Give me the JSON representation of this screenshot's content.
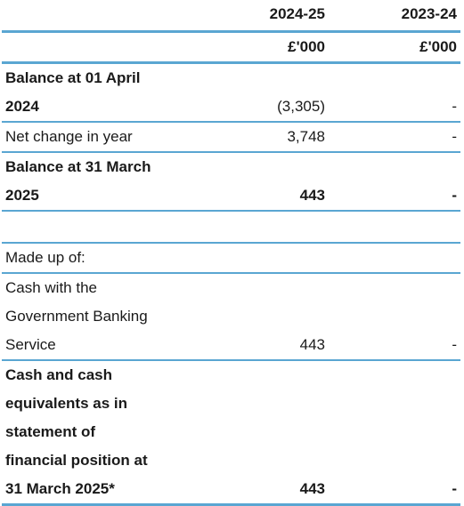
{
  "header": {
    "col_current": "2024-25",
    "col_prior": "2023-24",
    "unit_current": "£'000",
    "unit_prior": "£'000"
  },
  "rows": {
    "balance_open": {
      "label_line1": "Balance at 01 April",
      "label_line2": "2024",
      "current": "(3,305)",
      "prior": "-"
    },
    "net_change": {
      "label": "Net change in year",
      "current": "3,748",
      "prior": "-"
    },
    "balance_close": {
      "label_line1": "Balance at 31 March",
      "label_line2": "2025",
      "current": "443",
      "prior": "-"
    },
    "made_up_of": {
      "label": "Made up of:"
    },
    "gbs_cash": {
      "label_line1": "Cash with the",
      "label_line2": "Government Banking",
      "label_line3": "Service",
      "current": "443",
      "prior": "-"
    },
    "cash_total": {
      "label_line1": "Cash and cash",
      "label_line2": "equivalents as in",
      "label_line3": "statement of",
      "label_line4": "financial position at",
      "label_line5": "31 March 2025*",
      "current": "443",
      "prior": "-"
    }
  },
  "colors": {
    "rule": "#5aa6d2",
    "text": "#1a1a1a"
  }
}
